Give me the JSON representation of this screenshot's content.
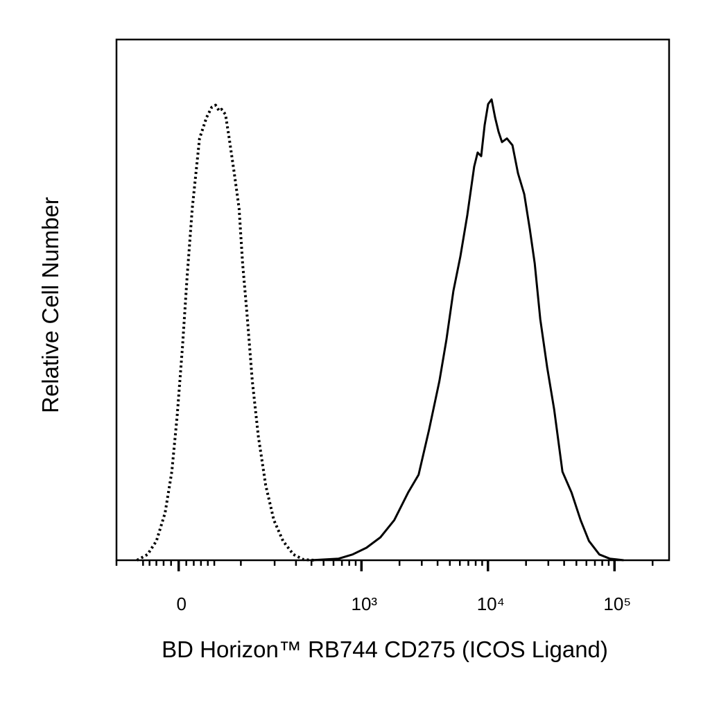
{
  "chart_data": {
    "type": "histogram-overlay",
    "xlabel": "BD Horizon™ RB744 CD275 (ICOS Ligand)",
    "ylabel": "Relative Cell Number",
    "xscale": "biexponential",
    "xlim": [
      -100,
      270000
    ],
    "ylim": [
      0,
      100
    ],
    "xticks": [
      {
        "value": 0,
        "label": "0"
      },
      {
        "value": 1000,
        "label": "10³"
      },
      {
        "value": 10000,
        "label": "10⁴"
      },
      {
        "value": 100000,
        "label": "10⁵"
      }
    ],
    "xminorticks": [
      -100,
      -50,
      -40,
      -30,
      -20,
      -10,
      10,
      20,
      30,
      40,
      50,
      100,
      200,
      300,
      400,
      500,
      600,
      700,
      800,
      900,
      2000,
      3000,
      4000,
      5000,
      6000,
      7000,
      8000,
      9000,
      20000,
      30000,
      40000,
      50000,
      60000,
      70000,
      80000,
      90000,
      200000
    ],
    "series": [
      {
        "color": "#000000",
        "dash": "dotted",
        "x": [
          -60,
          -43,
          -30,
          -18,
          -9,
          -2,
          5,
          11,
          18,
          28,
          38,
          46,
          52,
          58,
          62,
          69,
          76,
          86,
          96,
          104,
          114,
          128,
          145,
          168,
          197,
          235,
          286,
          347,
          421
        ],
        "values": [
          0,
          1.1,
          3.7,
          9.1,
          17.0,
          27.7,
          41.0,
          54.3,
          67.6,
          81.0,
          85.0,
          87.0,
          87.4,
          86.3,
          86.6,
          85.6,
          81.0,
          74.3,
          67.6,
          57.0,
          47.7,
          34.4,
          23.8,
          14.4,
          7.7,
          3.7,
          1.1,
          0.1,
          0
        ]
      },
      {
        "color": "#000000",
        "dash": "solid",
        "x": [
          395,
          659,
          850,
          1095,
          1411,
          1817,
          2340,
          2830,
          3420,
          4135,
          4697,
          5333,
          6048,
          6868,
          7790,
          8294,
          8843,
          9418,
          10030,
          10685,
          11390,
          12130,
          12917,
          14120,
          15620,
          17280,
          19360,
          21420,
          23410,
          25900,
          29400,
          33350,
          38810,
          45760,
          53960,
          62820,
          75890,
          91760,
          118190
        ],
        "values": [
          0,
          0.3,
          1.1,
          2.4,
          4.4,
          7.7,
          13.0,
          16.4,
          25.0,
          34.4,
          42.3,
          51.7,
          58.3,
          66.3,
          75.6,
          78.3,
          77.6,
          83.6,
          87.6,
          88.5,
          85.0,
          82.3,
          80.3,
          81.0,
          79.7,
          74.3,
          70.3,
          63.6,
          57.0,
          46.3,
          37.0,
          29.0,
          17.0,
          13.0,
          7.7,
          3.7,
          1.1,
          0.3,
          0
        ]
      }
    ]
  }
}
